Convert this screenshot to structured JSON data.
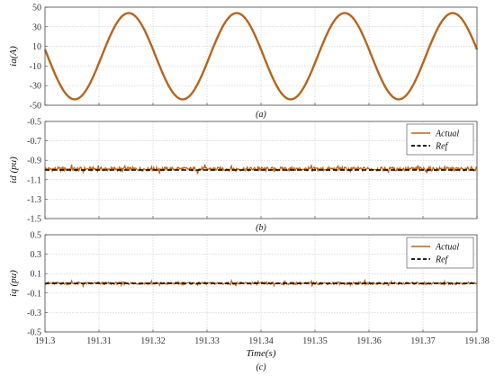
{
  "colors": {
    "actual": "#b5651d",
    "ref": "#000000",
    "grid": "#bdbdbd",
    "axis": "#444444"
  },
  "chart_data": [
    {
      "id": "a",
      "type": "line",
      "caption": "(a)",
      "ylabel": "ia(A)",
      "ylim": [
        -50,
        50
      ],
      "yticks": [
        "50",
        "30",
        "10",
        "-10",
        "-30",
        "-50"
      ],
      "xlim": [
        191.3,
        191.38
      ],
      "grid": true,
      "series": [
        {
          "key": "actual",
          "kind": "sine",
          "amplitude": 44,
          "frequency_hz": 50,
          "peak_times": [
            191.3155,
            191.3355,
            191.3555,
            191.3755
          ]
        }
      ]
    },
    {
      "id": "b",
      "type": "line",
      "caption": "(b)",
      "ylabel": "id (pu)",
      "ylim": [
        -1.5,
        -0.5
      ],
      "yticks": [
        "-0.5",
        "-0.7",
        "-0.9",
        "-1.1",
        "-1.3",
        "-1.5"
      ],
      "xlim": [
        191.3,
        191.38
      ],
      "grid": true,
      "legend": {
        "placement": "top-right",
        "entries": [
          {
            "label": "Actual",
            "key": "actual"
          },
          {
            "label": "Ref",
            "key": "ref"
          }
        ]
      },
      "series": [
        {
          "name": "Actual",
          "key": "actual",
          "mean": -0.99,
          "ripple": 0.02
        },
        {
          "name": "Ref",
          "key": "ref",
          "constant": -1.0
        }
      ]
    },
    {
      "id": "c",
      "type": "line",
      "caption": "(c)",
      "ylabel": "iq (pu)",
      "xlabel": "Time(s)",
      "ylim": [
        -0.5,
        0.5
      ],
      "yticks": [
        "0.5",
        "0.3",
        "0.1",
        "-0.1",
        "-0.3",
        "-0.5"
      ],
      "xlim": [
        191.3,
        191.38
      ],
      "xticks": [
        "191.3",
        "191.31",
        "191.32",
        "191.33",
        "191.34",
        "191.35",
        "191.36",
        "191.37",
        "191.38"
      ],
      "grid": true,
      "legend": {
        "placement": "top-right",
        "entries": [
          {
            "label": "Actual",
            "key": "actual"
          },
          {
            "label": "Ref",
            "key": "ref"
          }
        ]
      },
      "series": [
        {
          "name": "Actual",
          "key": "actual",
          "mean": 0.0,
          "ripple": 0.012
        },
        {
          "name": "Ref",
          "key": "ref",
          "constant": 0.0
        }
      ]
    }
  ]
}
